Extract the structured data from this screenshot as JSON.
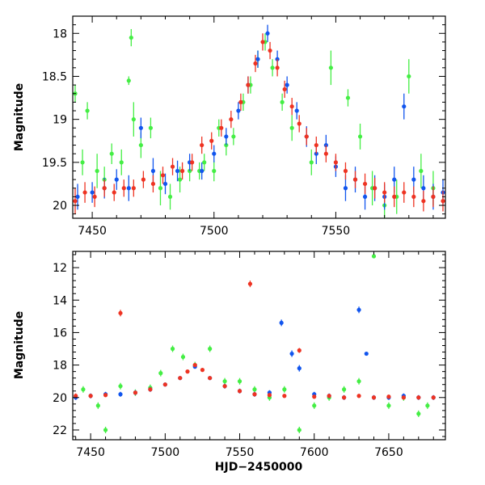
{
  "colors": {
    "green": "#44ee44",
    "blue": "#1155ee",
    "red": "#ee3322",
    "axis": "#000000"
  },
  "chart_data": [
    {
      "type": "scatter",
      "title": "",
      "xlabel": "",
      "ylabel": "Magnitude",
      "xlim": [
        7442,
        7595
      ],
      "ylim": [
        20.15,
        17.8
      ],
      "y_inverted": true,
      "xticks": [
        7450,
        7500,
        7550
      ],
      "xtick_labels": [
        "7450",
        "7500",
        "7550"
      ],
      "yticks": [
        18,
        18.5,
        19,
        19.5,
        20
      ],
      "ytick_labels": [
        "18",
        "18.5",
        "19",
        "19.5",
        "20"
      ],
      "series": [
        {
          "color": "green",
          "x": [
            7443,
            7446,
            7448,
            7452,
            7455,
            7458,
            7462,
            7465,
            7466,
            7467,
            7470,
            7474,
            7478,
            7482,
            7486,
            7490,
            7494,
            7496,
            7500,
            7502,
            7505,
            7508,
            7512,
            7515,
            7518,
            7521,
            7524,
            7528,
            7532,
            7540,
            7548,
            7555,
            7560,
            7565,
            7570,
            7575,
            7580,
            7585,
            7590
          ],
          "y": [
            18.7,
            19.5,
            18.9,
            19.6,
            19.7,
            19.4,
            19.5,
            18.55,
            18.05,
            19.0,
            19.3,
            19.1,
            19.8,
            19.9,
            19.7,
            19.6,
            19.6,
            19.5,
            19.6,
            19.1,
            19.3,
            19.2,
            18.8,
            18.6,
            18.3,
            18.1,
            18.4,
            18.8,
            19.1,
            19.5,
            18.4,
            18.75,
            19.2,
            19.8,
            20.0,
            19.9,
            18.5,
            19.6,
            19.8
          ],
          "err": [
            0.1,
            0.15,
            0.1,
            0.2,
            0.15,
            0.12,
            0.15,
            0.05,
            0.1,
            0.2,
            0.15,
            0.12,
            0.2,
            0.15,
            0.15,
            0.12,
            0.1,
            0.1,
            0.12,
            0.1,
            0.12,
            0.1,
            0.1,
            0.1,
            0.1,
            0.1,
            0.1,
            0.1,
            0.15,
            0.15,
            0.2,
            0.1,
            0.15,
            0.2,
            0.15,
            0.2,
            0.2,
            0.2,
            0.2
          ]
        },
        {
          "color": "blue",
          "x": [
            7444,
            7450,
            7455,
            7460,
            7465,
            7470,
            7475,
            7480,
            7485,
            7490,
            7495,
            7500,
            7505,
            7510,
            7514,
            7518,
            7522,
            7526,
            7530,
            7534,
            7538,
            7542,
            7546,
            7550,
            7554,
            7558,
            7562,
            7566,
            7570,
            7574,
            7578,
            7582,
            7586,
            7590,
            7594
          ],
          "y": [
            19.9,
            19.85,
            19.8,
            19.7,
            19.8,
            19.1,
            19.6,
            19.75,
            19.6,
            19.5,
            19.6,
            19.4,
            19.2,
            18.9,
            18.6,
            18.3,
            18.0,
            18.3,
            18.6,
            18.9,
            19.2,
            19.4,
            19.3,
            19.55,
            19.8,
            19.7,
            19.9,
            19.8,
            19.9,
            19.7,
            18.85,
            19.7,
            19.8,
            19.9,
            19.85
          ],
          "err": [
            0.15,
            0.12,
            0.12,
            0.12,
            0.15,
            0.12,
            0.15,
            0.12,
            0.12,
            0.1,
            0.1,
            0.1,
            0.1,
            0.1,
            0.1,
            0.1,
            0.1,
            0.1,
            0.1,
            0.1,
            0.12,
            0.12,
            0.12,
            0.12,
            0.15,
            0.15,
            0.15,
            0.15,
            0.15,
            0.15,
            0.15,
            0.15,
            0.15,
            0.15,
            0.15
          ]
        },
        {
          "color": "red",
          "x": [
            7443,
            7447,
            7451,
            7455,
            7459,
            7463,
            7467,
            7471,
            7475,
            7479,
            7483,
            7487,
            7491,
            7495,
            7499,
            7503,
            7507,
            7511,
            7514,
            7517,
            7520,
            7523,
            7526,
            7529,
            7532,
            7535,
            7538,
            7542,
            7546,
            7550,
            7554,
            7558,
            7562,
            7566,
            7570,
            7574,
            7578,
            7582,
            7586,
            7590,
            7594
          ],
          "y": [
            19.95,
            19.85,
            19.9,
            19.8,
            19.85,
            19.8,
            19.8,
            19.7,
            19.75,
            19.65,
            19.55,
            19.6,
            19.5,
            19.3,
            19.25,
            19.1,
            19.0,
            18.8,
            18.6,
            18.35,
            18.1,
            18.2,
            18.4,
            18.65,
            18.85,
            19.05,
            19.2,
            19.3,
            19.4,
            19.5,
            19.6,
            19.7,
            19.75,
            19.8,
            19.85,
            19.9,
            19.85,
            19.9,
            19.95,
            19.9,
            19.95
          ],
          "err": [
            0.15,
            0.12,
            0.12,
            0.1,
            0.1,
            0.1,
            0.1,
            0.1,
            0.1,
            0.1,
            0.1,
            0.1,
            0.1,
            0.1,
            0.1,
            0.1,
            0.1,
            0.1,
            0.1,
            0.1,
            0.1,
            0.1,
            0.1,
            0.1,
            0.1,
            0.1,
            0.1,
            0.1,
            0.1,
            0.1,
            0.1,
            0.1,
            0.12,
            0.12,
            0.12,
            0.12,
            0.12,
            0.12,
            0.12,
            0.12,
            0.12
          ]
        }
      ]
    },
    {
      "type": "scatter",
      "title": "",
      "xlabel": "HJD−2450000",
      "ylabel": "Magnitude",
      "xlim": [
        7438,
        7688
      ],
      "ylim": [
        22.6,
        11.0
      ],
      "y_inverted": true,
      "xticks": [
        7450,
        7500,
        7550,
        7600,
        7650
      ],
      "xtick_labels": [
        "7450",
        "7500",
        "7550",
        "7600",
        "7650"
      ],
      "yticks": [
        12,
        14,
        16,
        18,
        20,
        22
      ],
      "ytick_labels": [
        "12",
        "14",
        "16",
        "18",
        "20",
        "22"
      ],
      "series": [
        {
          "color": "green",
          "x": [
            7445,
            7455,
            7460,
            7470,
            7480,
            7490,
            7497,
            7505,
            7512,
            7520,
            7530,
            7540,
            7550,
            7560,
            7570,
            7580,
            7590,
            7600,
            7610,
            7620,
            7630,
            7640,
            7650,
            7660,
            7670,
            7676
          ],
          "y": [
            19.5,
            20.5,
            22.0,
            19.3,
            19.7,
            19.4,
            18.5,
            17.0,
            17.5,
            18.0,
            17.0,
            19.0,
            19.0,
            19.5,
            20.0,
            19.5,
            22.0,
            20.5,
            20.0,
            19.5,
            19.0,
            11.3,
            20.5,
            20.0,
            21.0,
            20.5
          ],
          "err": [
            0.2,
            0.2,
            0.2,
            0.2,
            0.2,
            0.2,
            0.2,
            0.2,
            0.2,
            0.2,
            0.2,
            0.2,
            0.2,
            0.2,
            0.2,
            0.2,
            0.2,
            0.2,
            0.2,
            0.2,
            0.2,
            0.1,
            0.2,
            0.2,
            0.2,
            0.2
          ]
        },
        {
          "color": "blue",
          "x": [
            7440,
            7450,
            7460,
            7470,
            7480,
            7490,
            7500,
            7510,
            7520,
            7530,
            7540,
            7550,
            7560,
            7570,
            7578,
            7585,
            7590,
            7600,
            7610,
            7620,
            7630,
            7635,
            7640,
            7650,
            7660,
            7670,
            7680
          ],
          "y": [
            20.0,
            19.9,
            19.8,
            19.8,
            19.7,
            19.5,
            19.2,
            18.8,
            18.1,
            18.8,
            19.3,
            19.6,
            19.8,
            19.7,
            15.4,
            17.3,
            18.2,
            19.8,
            19.9,
            20.0,
            14.6,
            17.3,
            20.0,
            20.0,
            19.9,
            20.0,
            20.0
          ],
          "err": [
            0.15,
            0.15,
            0.15,
            0.15,
            0.15,
            0.15,
            0.12,
            0.1,
            0.1,
            0.12,
            0.15,
            0.15,
            0.15,
            0.15,
            0.2,
            0.2,
            0.2,
            0.15,
            0.15,
            0.15,
            0.2,
            0.1,
            0.15,
            0.15,
            0.15,
            0.15,
            0.15
          ]
        },
        {
          "color": "red",
          "x": [
            7440,
            7450,
            7460,
            7470,
            7480,
            7490,
            7500,
            7510,
            7515,
            7520,
            7525,
            7530,
            7540,
            7550,
            7557,
            7560,
            7570,
            7580,
            7590,
            7600,
            7610,
            7620,
            7630,
            7640,
            7650,
            7660,
            7670,
            7680
          ],
          "y": [
            19.9,
            19.9,
            19.85,
            14.8,
            19.7,
            19.5,
            19.2,
            18.8,
            18.4,
            18.0,
            18.3,
            18.8,
            19.3,
            19.6,
            13.0,
            19.8,
            19.85,
            19.9,
            17.1,
            19.95,
            19.9,
            20.0,
            19.9,
            20.0,
            19.95,
            20.0,
            20.0,
            20.0
          ],
          "err": [
            0.15,
            0.12,
            0.12,
            0.2,
            0.12,
            0.12,
            0.1,
            0.1,
            0.1,
            0.1,
            0.1,
            0.1,
            0.12,
            0.12,
            0.2,
            0.12,
            0.12,
            0.12,
            0.15,
            0.12,
            0.12,
            0.12,
            0.12,
            0.12,
            0.12,
            0.12,
            0.12,
            0.12
          ]
        }
      ]
    }
  ]
}
